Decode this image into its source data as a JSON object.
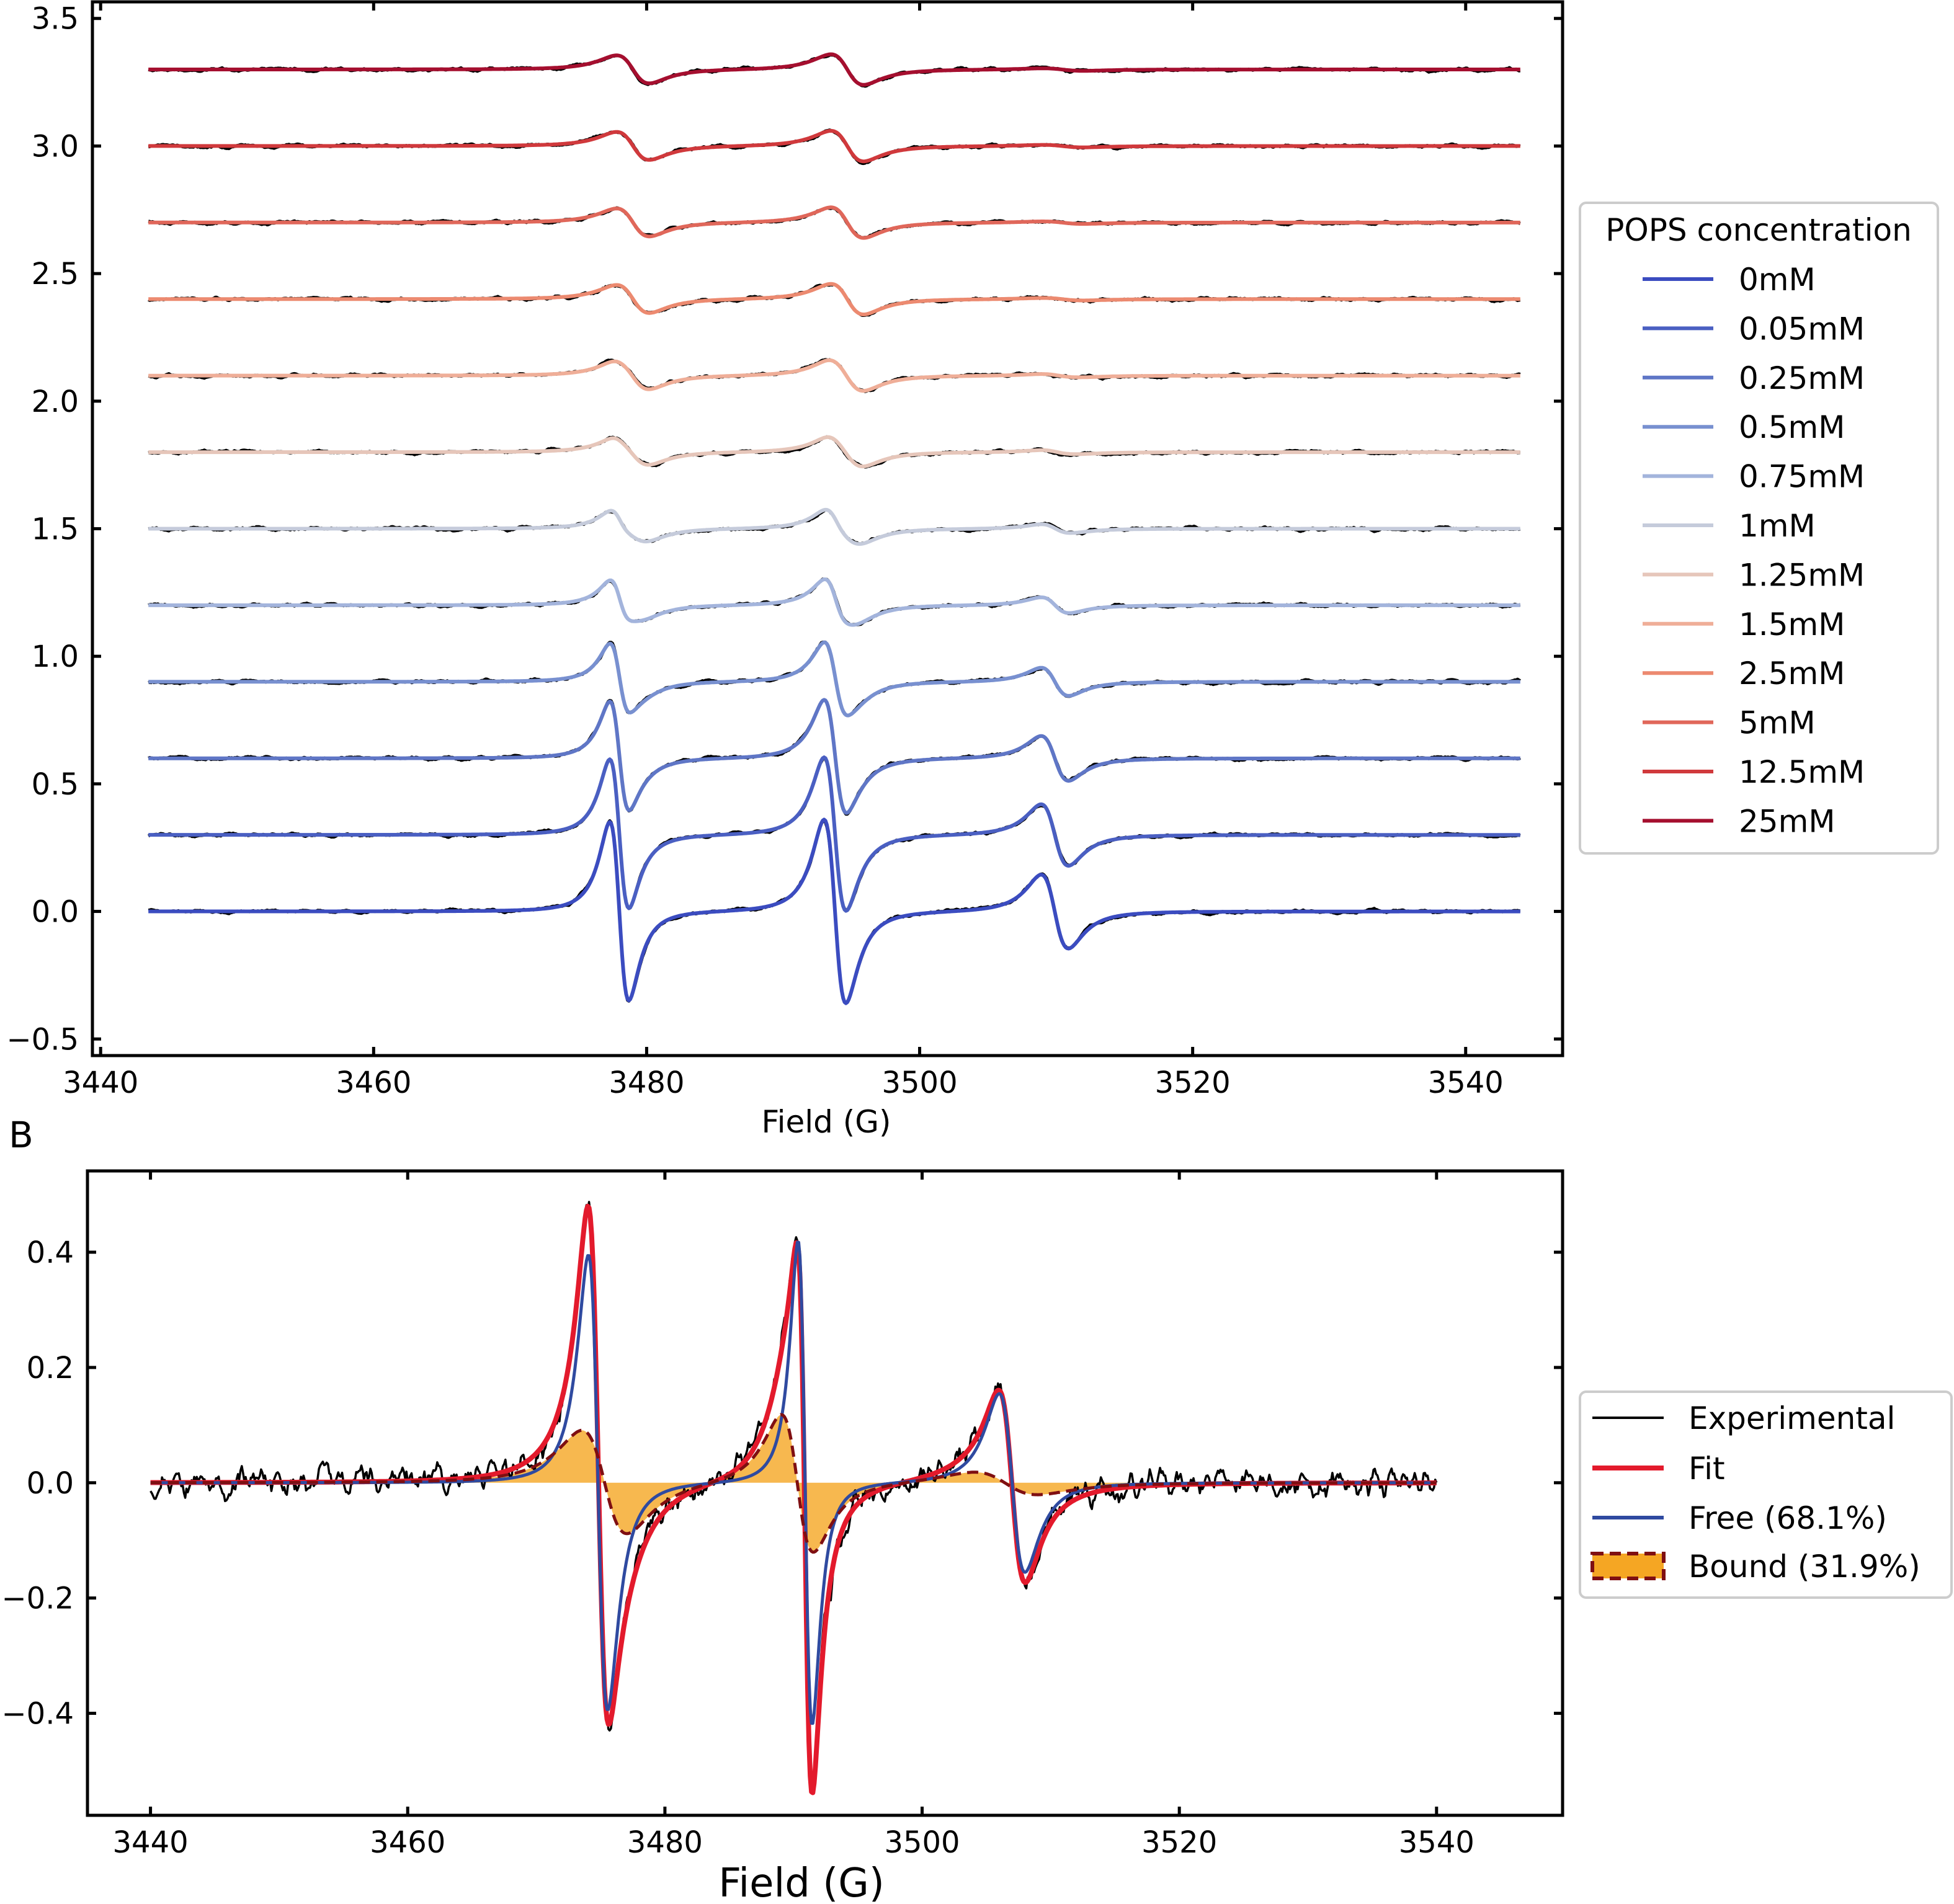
{
  "chart_data": [
    {
      "type": "line",
      "panel_label": "",
      "xlabel": "Field (G)",
      "ylabel": "",
      "xlim": [
        3439.4,
        3547.1
      ],
      "ylim": [
        -0.565,
        3.565
      ],
      "xticks": [
        3440,
        3460,
        3480,
        3500,
        3520,
        3540
      ],
      "xtick_labels": [
        "3440",
        "3460",
        "3480",
        "3500",
        "3520",
        "3540"
      ],
      "yticks": [
        -0.5,
        0,
        0.5,
        1,
        1.5,
        2,
        2.5,
        3,
        3.5
      ],
      "ytick_labels": [
        "−0.5",
        "0.0",
        "0.5",
        "1.0",
        "1.5",
        "2.0",
        "2.5",
        "3.0",
        "3.5"
      ],
      "grid": false,
      "field_range": [
        3443.5,
        3544
      ],
      "legend": {
        "title": "POPS concentration",
        "placement": "right-outside"
      },
      "data_color": "#000000",
      "components": {
        "free": [
          {
            "center": 3478.0,
            "linewidth_pp": 1.4,
            "peak_to_peak": 0.7
          },
          {
            "center": 3493.8,
            "linewidth_pp": 1.6,
            "peak_to_peak": 0.72
          },
          {
            "center": 3509.9,
            "linewidth_pp": 2.0,
            "peak_to_peak": 0.29
          }
        ],
        "bound": [
          {
            "center": 3479.0,
            "linewidth_pp": 2.4,
            "peak_to_peak": 0.11
          },
          {
            "center": 3494.7,
            "linewidth_pp": 2.4,
            "peak_to_peak": 0.12
          },
          {
            "center": 3510.5,
            "linewidth_pp": 3.0,
            "peak_to_peak": 0.01
          }
        ]
      },
      "series": [
        {
          "name": "0mM",
          "color": "#3b4cc0",
          "offset": 0.0,
          "free_scale": 1.0,
          "bound_scale": 0.0
        },
        {
          "name": "0.05mM",
          "color": "#4a5fc2",
          "offset": 0.3,
          "free_scale": 0.83,
          "bound_scale": 0.1
        },
        {
          "name": "0.25mM",
          "color": "#5f76c6",
          "offset": 0.6,
          "free_scale": 0.6,
          "bound_scale": 0.25
        },
        {
          "name": "0.5mM",
          "color": "#7890d0",
          "offset": 0.9,
          "free_scale": 0.37,
          "bound_scale": 0.4
        },
        {
          "name": "0.75mM",
          "color": "#a3b4dc",
          "offset": 1.2,
          "free_scale": 0.2,
          "bound_scale": 0.55
        },
        {
          "name": "1mM",
          "color": "#c5cbdb",
          "offset": 1.5,
          "free_scale": 0.1,
          "bound_scale": 0.7
        },
        {
          "name": "1.25mM",
          "color": "#e6c6ba",
          "offset": 1.8,
          "free_scale": 0.03,
          "bound_scale": 0.85
        },
        {
          "name": "1.5mM",
          "color": "#efae98",
          "offset": 2.1,
          "free_scale": 0.015,
          "bound_scale": 0.95
        },
        {
          "name": "2.5mM",
          "color": "#ec8a70",
          "offset": 2.4,
          "free_scale": 0.0,
          "bound_scale": 1.0
        },
        {
          "name": "5mM",
          "color": "#e0675a",
          "offset": 2.7,
          "free_scale": 0.0,
          "bound_scale": 1.0
        },
        {
          "name": "12.5mM",
          "color": "#d0393c",
          "offset": 3.0,
          "free_scale": 0.0,
          "bound_scale": 1.0
        },
        {
          "name": "25mM",
          "color": "#a50f2f",
          "offset": 3.3,
          "free_scale": 0.0,
          "bound_scale": 1.0
        }
      ]
    },
    {
      "type": "line",
      "panel_label": "B",
      "xlabel": "Field (G)",
      "ylabel": "",
      "xlim": [
        3435.1,
        3549.8
      ],
      "ylim": [
        -0.577,
        0.541
      ],
      "xticks": [
        3440,
        3460,
        3480,
        3500,
        3520,
        3540
      ],
      "xtick_labels": [
        "3440",
        "3460",
        "3480",
        "3500",
        "3520",
        "3540"
      ],
      "yticks": [
        -0.4,
        -0.2,
        0,
        0.2,
        0.4
      ],
      "ytick_labels": [
        "−0.4",
        "−0.2",
        "0.0",
        "0.2",
        "0.4"
      ],
      "grid": false,
      "field_range": [
        3440,
        3540
      ],
      "legend": {
        "placement": "right-outside"
      },
      "components": {
        "free": [
          {
            "center": 3474.8,
            "linewidth_pp": 1.5,
            "peak_to_peak": 0.79
          },
          {
            "center": 3490.9,
            "linewidth_pp": 1.1,
            "peak_to_peak": 0.84
          },
          {
            "center": 3507.0,
            "linewidth_pp": 2.0,
            "peak_to_peak": 0.31
          }
        ],
        "bound": [
          {
            "center": 3475.3,
            "linewidth_pp": 3.5,
            "peak_to_peak": 0.18
          },
          {
            "center": 3490.3,
            "linewidth_pp": 2.5,
            "peak_to_peak": 0.24
          },
          {
            "center": 3506.5,
            "linewidth_pp": 5.0,
            "peak_to_peak": 0.04
          }
        ]
      },
      "series": [
        {
          "name": "Experimental",
          "color": "#000000"
        },
        {
          "name": "Fit",
          "color": "#e31a2c"
        },
        {
          "name": "Free (68.1%)",
          "color": "#2f4aa0"
        },
        {
          "name": "Bound (31.9%)",
          "color": "#7f0f12",
          "fill": "#f5a623"
        }
      ]
    }
  ]
}
